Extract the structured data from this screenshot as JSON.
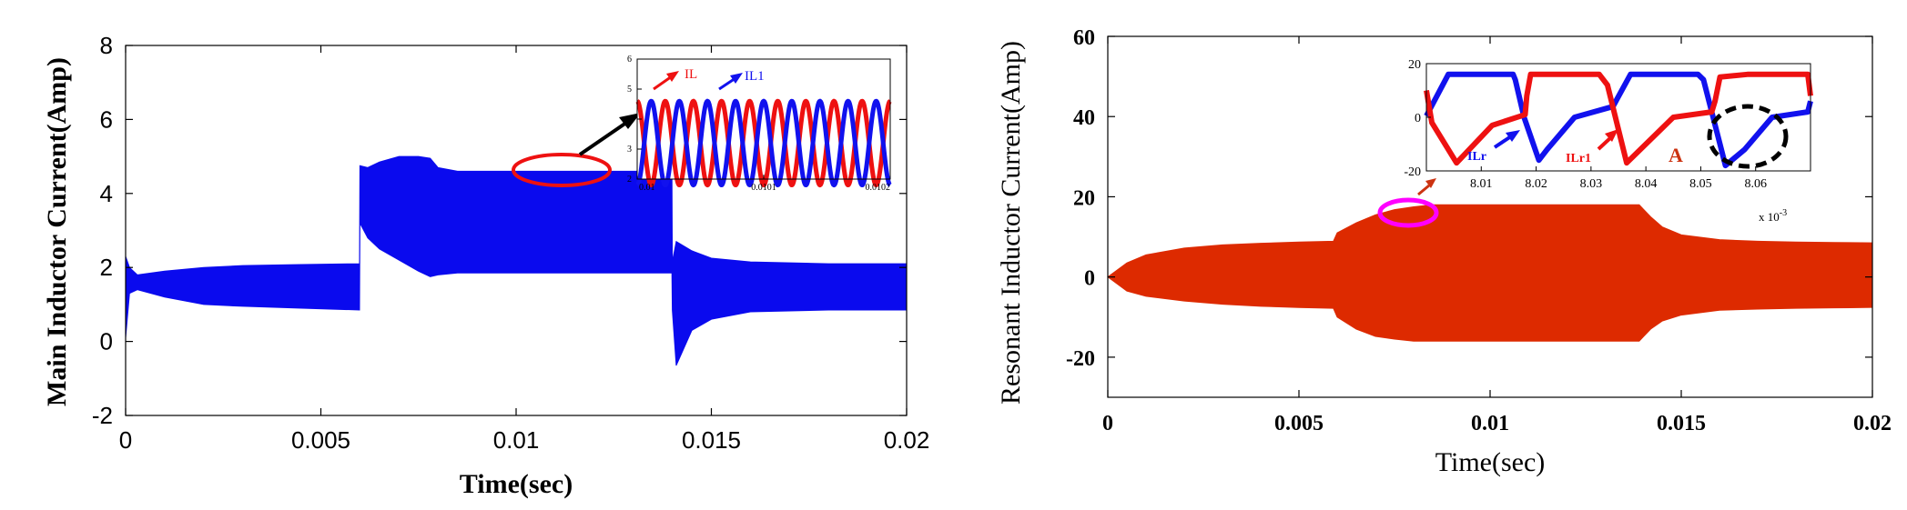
{
  "chart_data": [
    {
      "type": "line",
      "ylabel": "Main Inductor Current(Amp)",
      "xlabel": "Time(sec)",
      "xlim": [
        0,
        0.02
      ],
      "ylim": [
        -2,
        8
      ],
      "x_ticks": [
        "0",
        "0.005",
        "0.01",
        "0.015",
        "0.02"
      ],
      "y_ticks": [
        "-2",
        "0",
        "2",
        "4",
        "6",
        "8"
      ],
      "grid": false,
      "series_color": "#0a0aee",
      "envelope": {
        "x": [
          0,
          0.0001,
          0.0003,
          0.001,
          0.002,
          0.003,
          0.0045,
          0.00599,
          0.006,
          0.0062,
          0.0065,
          0.007,
          0.0075,
          0.0078,
          0.008,
          0.0085,
          0.009,
          0.011,
          0.013,
          0.01399,
          0.014,
          0.0141,
          0.0145,
          0.015,
          0.016,
          0.018,
          0.02
        ],
        "upper": [
          2.3,
          2.0,
          1.8,
          1.9,
          2.0,
          2.05,
          2.08,
          2.1,
          4.75,
          4.7,
          4.85,
          5.0,
          5.0,
          4.95,
          4.7,
          4.6,
          4.6,
          4.6,
          4.6,
          4.6,
          2.15,
          2.7,
          2.45,
          2.25,
          2.15,
          2.1,
          2.1
        ],
        "lower": [
          0.1,
          1.3,
          1.4,
          1.2,
          1.0,
          0.95,
          0.9,
          0.85,
          3.2,
          2.8,
          2.5,
          2.2,
          1.9,
          1.75,
          1.8,
          1.85,
          1.85,
          1.85,
          1.85,
          1.85,
          0.85,
          -0.65,
          0.3,
          0.6,
          0.8,
          0.85,
          0.85
        ]
      },
      "inset": {
        "xlim": [
          0.01,
          0.0102
        ],
        "ylim": [
          2,
          6
        ],
        "x_ticks": [
          "0.01",
          "0.0101",
          "0.0102"
        ],
        "y_ticks": [
          "2",
          "3",
          "4",
          "5",
          "6"
        ],
        "series": [
          {
            "name": "IL",
            "color": "#ee1111",
            "mean": 3.2,
            "amplitude": 1.4,
            "cycles": 9,
            "phase": 0
          },
          {
            "name": "IL1",
            "color": "#1111ee",
            "mean": 3.2,
            "amplitude": 1.4,
            "cycles": 9,
            "phase": 3.14159
          }
        ]
      }
    },
    {
      "type": "line",
      "ylabel": "Resonant Inductor Current(Amp)",
      "xlabel": "Time(sec)",
      "xlim": [
        0,
        0.02
      ],
      "ylim": [
        -30,
        60
      ],
      "x_ticks": [
        "0",
        "0.005",
        "0.01",
        "0.015",
        "0.02"
      ],
      "y_ticks": [
        "-20",
        "0",
        "20",
        "40",
        "60"
      ],
      "grid": false,
      "series_color": "#dd2a00",
      "envelope": {
        "x": [
          0,
          0.0005,
          0.001,
          0.002,
          0.003,
          0.004,
          0.005,
          0.0059,
          0.006,
          0.0065,
          0.007,
          0.0075,
          0.008,
          0.0085,
          0.009,
          0.011,
          0.013,
          0.0139,
          0.014,
          0.0142,
          0.0145,
          0.015,
          0.016,
          0.017,
          0.018,
          0.019,
          0.02
        ],
        "upper": [
          0,
          3.5,
          5.5,
          7.2,
          8.0,
          8.4,
          8.7,
          8.9,
          11.0,
          13.5,
          15.5,
          16.8,
          17.5,
          18.0,
          18.0,
          18.0,
          18.0,
          18.0,
          17.0,
          15.0,
          12.5,
          10.5,
          9.3,
          8.9,
          8.7,
          8.6,
          8.5
        ],
        "lower": [
          0,
          -3.5,
          -4.8,
          -6.0,
          -6.8,
          -7.3,
          -7.6,
          -7.8,
          -10.0,
          -13.0,
          -14.8,
          -15.5,
          -16.0,
          -16.0,
          -16.0,
          -16.0,
          -16.0,
          -16.0,
          -15.0,
          -13.0,
          -11.0,
          -9.5,
          -8.3,
          -8.0,
          -7.8,
          -7.7,
          -7.6
        ]
      },
      "inset": {
        "xlim": [
          8.0,
          8.07
        ],
        "ylim": [
          -20,
          20
        ],
        "x_ticks": [
          "8.01",
          "8.02",
          "8.03",
          "8.04",
          "8.05",
          "8.06"
        ],
        "y_ticks": [
          "-20",
          "0",
          "20"
        ],
        "x_multiplier": "x 10",
        "x_multiplier_exp": "-3",
        "series": [
          {
            "name": "ILr",
            "color": "#1111ee",
            "label_color": "#1111ee",
            "x": [
              8.0,
              8.004,
              8.0158,
              8.0162,
              8.0178,
              8.0205,
              8.022,
              8.027,
              8.034,
              8.0372,
              8.0375,
              8.0495,
              8.0505,
              8.0545,
              8.058,
              8.063,
              8.0695,
              8.07
            ],
            "y": [
              0.5,
              16,
              16,
              14,
              0,
              -16,
              -12,
              0,
              4,
              16,
              16,
              16,
              14,
              -18,
              -12,
              0,
              2,
              6
            ]
          },
          {
            "name": "ILr1",
            "color": "#ee1111",
            "label_color": "#ee1111",
            "x": [
              8.0,
              8.001,
              8.0055,
              8.012,
              8.018,
              8.0183,
              8.019,
              8.0212,
              8.0315,
              8.033,
              8.0365,
              8.045,
              8.052,
              8.0526,
              8.0535,
              8.0585,
              8.0695,
              8.07
            ],
            "y": [
              10,
              -2,
              -17,
              -3,
              1,
              8,
              16,
              16,
              16,
              12,
              -17,
              0,
              2,
              6,
              15,
              16,
              16,
              8
            ]
          }
        ],
        "annotation": "A"
      }
    }
  ]
}
